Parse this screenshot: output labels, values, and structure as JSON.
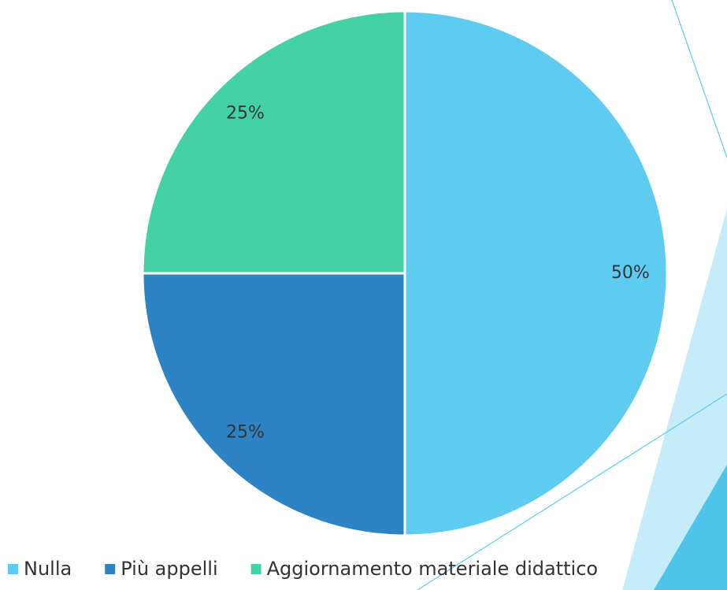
{
  "chart_data": {
    "type": "pie",
    "categories": [
      "Nulla",
      "Più appelli",
      "Aggiornamento materiale didattico"
    ],
    "values": [
      50,
      25,
      25
    ],
    "value_labels": [
      "50%",
      "25%",
      "25%"
    ],
    "colors": [
      "#5ecbf0",
      "#2e83c4",
      "#43d1a5"
    ]
  }
}
